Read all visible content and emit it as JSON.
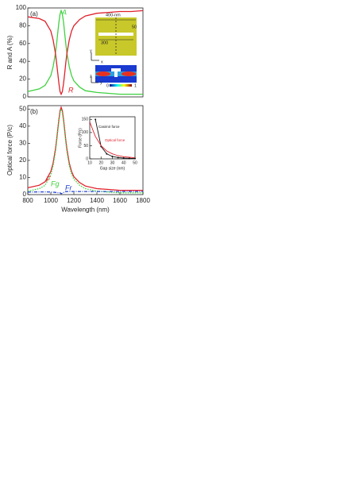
{
  "chart_data": [
    {
      "type": "line",
      "panel": "(a)",
      "y_label": "R and A (%)",
      "x": [
        800,
        900,
        950,
        1000,
        1020,
        1040,
        1050,
        1060,
        1070,
        1080,
        1090,
        1100,
        1110,
        1120,
        1130,
        1140,
        1160,
        1180,
        1200,
        1250,
        1300,
        1400,
        1500,
        1600,
        1700,
        1800
      ],
      "series": [
        {
          "name": "A",
          "color": "#3fd13f",
          "values": [
            6,
            9,
            13,
            24,
            34,
            49,
            60,
            72,
            84,
            93,
            97,
            93,
            84,
            72,
            60,
            49,
            34,
            24,
            18,
            11,
            7,
            5,
            4,
            3,
            3,
            3
          ]
        },
        {
          "name": "R",
          "color": "#e0202a",
          "values": [
            90,
            88,
            85,
            74,
            64,
            49,
            38,
            27,
            15,
            6,
            3,
            6,
            15,
            26,
            38,
            49,
            64,
            74,
            80,
            87,
            91,
            94,
            95,
            96,
            96,
            97
          ]
        }
      ],
      "xlim": [
        800,
        1800
      ],
      "ylim": [
        0,
        100
      ],
      "yticks": [
        0,
        20,
        40,
        60,
        80,
        100
      ],
      "inset_labels": [
        "400-nm",
        "50",
        "300",
        "y",
        "x",
        "z",
        "y",
        "0",
        "1"
      ]
    },
    {
      "type": "line",
      "panel": "(b)",
      "y_label": "Optical force (P/c)",
      "x_label": "Wavelength (nm)",
      "x": [
        800,
        900,
        950,
        1000,
        1020,
        1040,
        1050,
        1060,
        1070,
        1080,
        1090,
        1100,
        1110,
        1120,
        1130,
        1140,
        1160,
        1180,
        1200,
        1250,
        1300,
        1400,
        1500,
        1600,
        1700,
        1800
      ],
      "series": [
        {
          "name": "F",
          "color": "#e0202a",
          "style": "solid",
          "values": [
            4,
            5.5,
            7.5,
            13.5,
            18.5,
            26.5,
            32,
            38,
            44,
            49,
            51,
            49,
            44,
            38,
            32,
            26.5,
            18.5,
            13.5,
            10.5,
            7,
            5,
            3.5,
            3,
            2.5,
            2.5,
            2.5
          ]
        },
        {
          "name": "Fg",
          "color": "#3fd13f",
          "style": "dotted",
          "values": [
            2,
            3.5,
            5.5,
            11.5,
            17,
            25,
            31,
            37,
            43,
            48,
            50,
            48,
            43,
            37,
            31,
            25,
            17,
            12,
            9,
            5.5,
            3.5,
            2,
            1.5,
            1,
            1,
            1
          ]
        },
        {
          "name": "Fr",
          "color": "#2040d0",
          "style": "dashdot",
          "values": [
            1.5,
            1.6,
            1.6,
            1.5,
            1.4,
            1.3,
            1.2,
            1.1,
            1,
            1,
            0.5,
            0.8,
            1.2,
            1.5,
            1.7,
            1.8,
            1.8,
            1.8,
            1.8,
            1.8,
            1.8,
            1.8,
            1.8,
            1.8,
            1.8,
            1.8
          ]
        }
      ],
      "xlim": [
        800,
        1800
      ],
      "ylim": [
        0,
        52
      ],
      "xticks": [
        800,
        1000,
        1200,
        1400,
        1600,
        1800
      ],
      "yticks": [
        0,
        10,
        20,
        30,
        40,
        50
      ]
    },
    {
      "type": "line",
      "y_label": "Force (P/c)",
      "x_label": "Gap size (nm)",
      "x": [
        10,
        15,
        20,
        25,
        30,
        35,
        40,
        45,
        50
      ],
      "series": [
        {
          "name": "Casimir force",
          "color": "#111111",
          "values": [
            null,
            150,
            47,
            19,
            9,
            5,
            3,
            2,
            1.2
          ]
        },
        {
          "name": "Optical force",
          "color": "#e0202a",
          "values": [
            140,
            85,
            50,
            30,
            19,
            12,
            8,
            6,
            4
          ]
        }
      ],
      "xlim": [
        10,
        50
      ],
      "ylim": [
        0,
        160
      ],
      "xticks": [
        10,
        20,
        30,
        40,
        50
      ],
      "yticks": [
        0,
        50,
        100,
        150
      ]
    }
  ]
}
